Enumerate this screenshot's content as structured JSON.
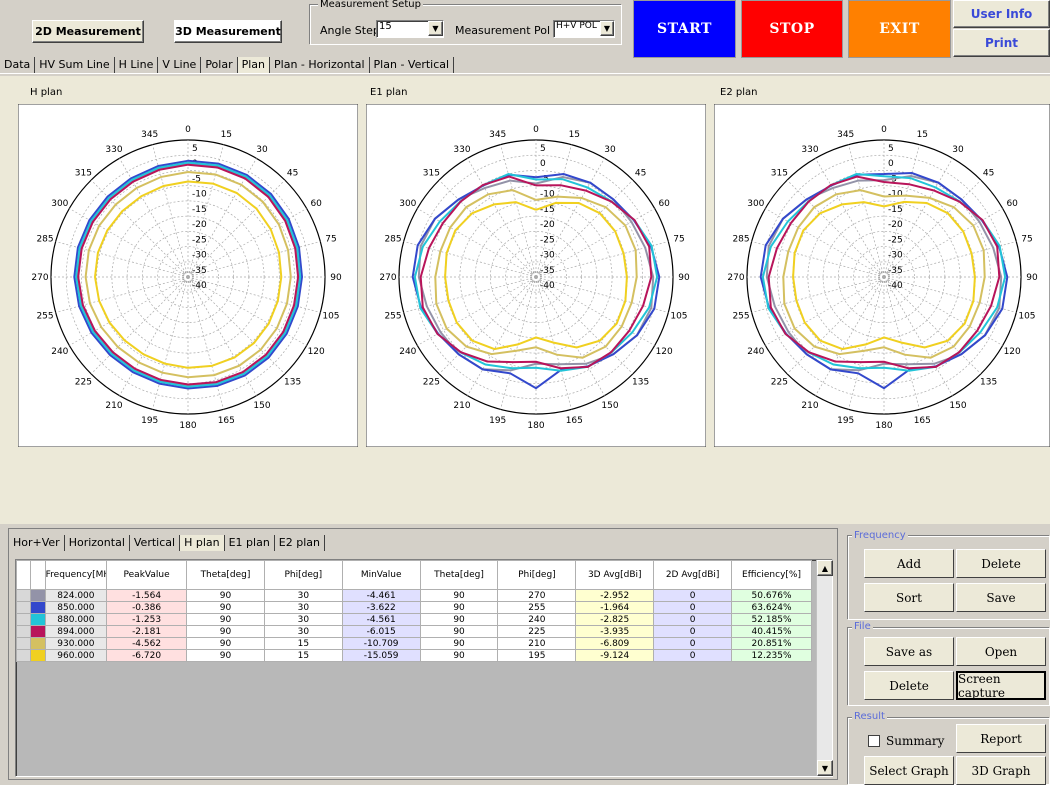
{
  "toolbar": {
    "btn_2d": "2D Measurement",
    "btn_3d": "3D Measurement",
    "setup_label": "Measurement Setup",
    "angle_step_label": "Angle Step",
    "angle_step_value": "15",
    "meas_pol_label": "Measurement Pol",
    "meas_pol_value": "H+V POL",
    "start": "START",
    "stop": "STOP",
    "exit": "EXIT",
    "user_info": "User Info",
    "print": "Print",
    "colors": {
      "start": "#0000ff",
      "stop": "#ff0000",
      "exit": "#ff8000"
    }
  },
  "top_tabs": [
    "Data",
    "HV Sum Line",
    "H Line",
    "V Line",
    "Polar",
    "Plan",
    "Plan - Horizontal",
    "Plan - Vertical"
  ],
  "top_tab_active": "Plan",
  "plots": [
    {
      "title": "H plan",
      "key": "h"
    },
    {
      "title": "E1 plan",
      "key": "e1"
    },
    {
      "title": "E2 plan",
      "key": "e2"
    }
  ],
  "polar": {
    "angle_labels": [
      "0",
      "15",
      "30",
      "45",
      "60",
      "75",
      "90",
      "105",
      "120",
      "135",
      "150",
      "165",
      "180",
      "195",
      "210",
      "225",
      "240",
      "255",
      "270",
      "285",
      "300",
      "315",
      "330",
      "345"
    ],
    "radial_labels": [
      "5",
      "0",
      "-5",
      "-10",
      "-15",
      "-20",
      "-25",
      "-30",
      "-35",
      "-40"
    ],
    "rmin": -40,
    "rmax": 5
  },
  "chart_data": {
    "type": "table",
    "series_colors": [
      "#9393a8",
      "#3348cc",
      "#22c4d8",
      "#b8145a",
      "#d4c060",
      "#f0d020"
    ],
    "columns": [
      "Frequency[MHz]",
      "PeakValue",
      "Theta[deg]",
      "Phi[deg]",
      "MinValue",
      "Theta[deg]",
      "Phi[deg]",
      "3D Avg[dBi]",
      "2D Avg[dBi]",
      "Efficiency[%]"
    ],
    "rows": [
      [
        "824.000",
        "-1.564",
        "90",
        "30",
        "-4.461",
        "90",
        "270",
        "-2.952",
        "0",
        "50.676%"
      ],
      [
        "850.000",
        "-0.386",
        "90",
        "30",
        "-3.622",
        "90",
        "255",
        "-1.964",
        "0",
        "63.624%"
      ],
      [
        "880.000",
        "-1.253",
        "90",
        "30",
        "-4.561",
        "90",
        "240",
        "-2.825",
        "0",
        "52.185%"
      ],
      [
        "894.000",
        "-2.181",
        "90",
        "30",
        "-6.015",
        "90",
        "225",
        "-3.935",
        "0",
        "40.415%"
      ],
      [
        "930.000",
        "-4.562",
        "90",
        "15",
        "-10.709",
        "90",
        "210",
        "-6.809",
        "0",
        "20.851%"
      ],
      [
        "960.000",
        "-6.720",
        "90",
        "15",
        "-15.059",
        "90",
        "195",
        "-9.124",
        "0",
        "12.235%"
      ]
    ]
  },
  "bottom_tabs": [
    "Hor+Ver",
    "Horizontal",
    "Vertical",
    "H plan",
    "E1 plan",
    "E2 plan"
  ],
  "bottom_tab_active": "H plan",
  "right": {
    "frequency_label": "Frequency",
    "add": "Add",
    "delete1": "Delete",
    "sort": "Sort",
    "save": "Save",
    "file_label": "File",
    "save_as": "Save as",
    "open": "Open",
    "delete2": "Delete",
    "screen_capture": "Screen capture",
    "result_label": "Result",
    "summary": "Summary",
    "report": "Report",
    "select_graph": "Select Graph",
    "graph3d": "3D Graph"
  }
}
